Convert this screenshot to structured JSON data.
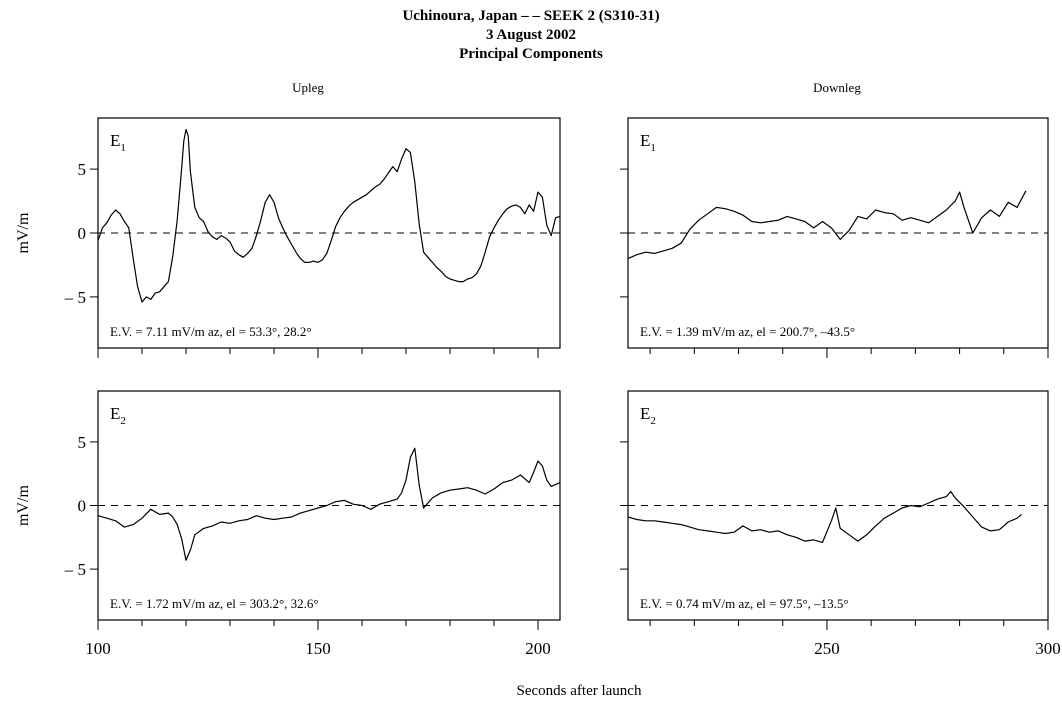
{
  "figure": {
    "title_lines": [
      "Uchinoura, Japan – – SEEK 2 (S310-31)",
      "3 August 2002",
      "Principal Components"
    ],
    "xlabel": "Seconds after launch",
    "ylabel": "mV/m",
    "left_column_title": "Upleg",
    "right_column_title": "Downleg"
  },
  "chart_data": [
    {
      "type": "line",
      "component": "E",
      "component_sub": "1",
      "column_title": "Upleg",
      "ylabel": "mV/m",
      "xlim": [
        100,
        205
      ],
      "ylim": [
        -9,
        9
      ],
      "yticks": [
        -5,
        0,
        5
      ],
      "ytick_labels": [
        "– 5",
        "0",
        "5"
      ],
      "xticks": [
        100,
        150,
        200
      ],
      "xtick_labels": [],
      "annotation": "E.V. = 7.11 mV/m   az, el = 53.3°, 28.2°",
      "x": [
        100,
        101,
        102,
        103,
        104,
        105,
        106,
        107,
        108,
        109,
        110,
        111,
        112,
        113,
        114,
        115,
        116,
        117,
        118,
        119,
        119.5,
        120,
        120.5,
        121,
        122,
        123,
        124,
        125,
        126,
        127,
        128,
        129,
        130,
        131,
        132,
        133,
        134,
        135,
        136,
        137,
        138,
        139,
        140,
        141,
        142,
        143,
        144,
        145,
        146,
        147,
        148,
        149,
        150,
        151,
        152,
        153,
        154,
        155,
        156,
        157,
        158,
        159,
        160,
        161,
        162,
        163,
        164,
        165,
        166,
        167,
        168,
        169,
        170,
        171,
        172,
        173,
        174,
        175,
        176,
        177,
        178,
        179,
        180,
        181,
        182,
        183,
        184,
        185,
        186,
        187,
        188,
        189,
        190,
        191,
        192,
        193,
        194,
        195,
        196,
        197,
        198,
        199,
        200,
        201,
        202,
        203,
        204,
        205
      ],
      "y": [
        -0.6,
        0.4,
        0.8,
        1.4,
        1.8,
        1.5,
        0.9,
        0.4,
        -2.0,
        -4.2,
        -5.4,
        -5.0,
        -5.2,
        -4.7,
        -4.6,
        -4.2,
        -3.8,
        -1.8,
        1.0,
        5.0,
        7.2,
        8.1,
        7.6,
        4.8,
        2.0,
        1.2,
        0.9,
        0.1,
        -0.3,
        -0.5,
        -0.2,
        -0.4,
        -0.7,
        -1.4,
        -1.7,
        -1.9,
        -1.6,
        -1.2,
        -0.2,
        1.0,
        2.4,
        3.0,
        2.4,
        1.2,
        0.4,
        -0.3,
        -0.9,
        -1.5,
        -2.0,
        -2.3,
        -2.3,
        -2.2,
        -2.3,
        -2.1,
        -1.6,
        -0.6,
        0.5,
        1.2,
        1.7,
        2.1,
        2.4,
        2.6,
        2.8,
        3.0,
        3.3,
        3.6,
        3.8,
        4.2,
        4.7,
        5.2,
        4.8,
        5.8,
        6.6,
        6.3,
        4.0,
        0.7,
        -1.5,
        -1.9,
        -2.3,
        -2.7,
        -3.0,
        -3.4,
        -3.6,
        -3.7,
        -3.8,
        -3.8,
        -3.6,
        -3.5,
        -3.2,
        -2.6,
        -1.5,
        -0.3,
        0.4,
        1.0,
        1.5,
        1.9,
        2.1,
        2.2,
        2.0,
        1.5,
        2.2,
        1.7,
        3.2,
        2.8,
        0.6,
        -0.2,
        1.2,
        1.3
      ]
    },
    {
      "type": "line",
      "component": "E",
      "component_sub": "1",
      "column_title": "Downleg",
      "xlim": [
        205,
        300
      ],
      "ylim": [
        -9,
        9
      ],
      "yticks": [
        -5,
        0,
        5
      ],
      "xticks": [
        250,
        300
      ],
      "xtick_labels": [],
      "annotation": "E.V. = 1.39 mV/m   az, el = 200.7°, –43.5°",
      "x": [
        205,
        207,
        209,
        211,
        213,
        215,
        217,
        219,
        221,
        223,
        225,
        227,
        229,
        231,
        233,
        235,
        237,
        239,
        241,
        243,
        245,
        247,
        249,
        251,
        253,
        255,
        257,
        259,
        261,
        263,
        265,
        267,
        269,
        271,
        273,
        275,
        277,
        279,
        280,
        281,
        283,
        285,
        287,
        289,
        291,
        293,
        295
      ],
      "y": [
        -2.0,
        -1.7,
        -1.5,
        -1.6,
        -1.4,
        -1.2,
        -0.8,
        0.3,
        1.0,
        1.5,
        2.0,
        1.9,
        1.7,
        1.4,
        0.9,
        0.8,
        0.9,
        1.0,
        1.3,
        1.1,
        0.9,
        0.4,
        0.9,
        0.4,
        -0.5,
        0.2,
        1.3,
        1.1,
        1.8,
        1.6,
        1.5,
        1.0,
        1.2,
        1.0,
        0.8,
        1.3,
        1.8,
        2.5,
        3.2,
        2.0,
        0.0,
        1.2,
        1.8,
        1.3,
        2.4,
        2.0,
        3.3
      ]
    },
    {
      "type": "line",
      "component": "E",
      "component_sub": "2",
      "column_title": "Upleg",
      "ylabel": "mV/m",
      "xlim": [
        100,
        205
      ],
      "ylim": [
        -9,
        9
      ],
      "yticks": [
        -5,
        0,
        5
      ],
      "ytick_labels": [
        "– 5",
        "0",
        "5"
      ],
      "xticks": [
        100,
        150,
        200
      ],
      "xtick_labels": [
        "100",
        "150",
        "200"
      ],
      "annotation": "E.V. = 1.72 mV/m   az, el = 303.2°, 32.6°",
      "x": [
        100,
        102,
        104,
        106,
        108,
        110,
        112,
        114,
        116,
        117,
        118,
        119,
        120,
        121,
        122,
        124,
        126,
        128,
        130,
        132,
        134,
        136,
        138,
        140,
        142,
        144,
        146,
        148,
        150,
        152,
        154,
        156,
        158,
        160,
        162,
        164,
        166,
        168,
        169,
        170,
        171,
        172,
        173,
        174,
        176,
        178,
        180,
        182,
        184,
        186,
        188,
        190,
        192,
        194,
        196,
        198,
        199,
        200,
        201,
        202,
        203,
        205
      ],
      "y": [
        -0.8,
        -1.0,
        -1.2,
        -1.7,
        -1.5,
        -1.0,
        -0.3,
        -0.7,
        -0.6,
        -0.9,
        -1.5,
        -2.6,
        -4.3,
        -3.5,
        -2.3,
        -1.8,
        -1.6,
        -1.3,
        -1.4,
        -1.2,
        -1.1,
        -0.8,
        -1.0,
        -1.1,
        -1.0,
        -0.9,
        -0.6,
        -0.4,
        -0.2,
        0.0,
        0.3,
        0.4,
        0.1,
        0.0,
        -0.3,
        0.1,
        0.3,
        0.5,
        1.0,
        2.0,
        3.8,
        4.5,
        1.6,
        -0.2,
        0.6,
        1.0,
        1.2,
        1.3,
        1.4,
        1.2,
        0.9,
        1.3,
        1.8,
        2.0,
        2.4,
        1.8,
        2.6,
        3.5,
        3.1,
        2.0,
        1.5,
        1.8
      ]
    },
    {
      "type": "line",
      "component": "E",
      "component_sub": "2",
      "column_title": "Downleg",
      "xlim": [
        205,
        300
      ],
      "ylim": [
        -9,
        9
      ],
      "yticks": [
        -5,
        0,
        5
      ],
      "xticks": [
        250,
        300
      ],
      "xtick_labels": [
        "250",
        "300"
      ],
      "annotation": "E.V. = 0.74 mV/m   az, el = 97.5°, –13.5°",
      "x": [
        205,
        207,
        209,
        211,
        213,
        215,
        217,
        219,
        221,
        223,
        225,
        227,
        229,
        231,
        233,
        235,
        237,
        239,
        241,
        243,
        245,
        247,
        249,
        251,
        252,
        253,
        255,
        257,
        259,
        261,
        263,
        265,
        267,
        269,
        271,
        273,
        275,
        277,
        278,
        279,
        281,
        283,
        285,
        287,
        289,
        291,
        293,
        294
      ],
      "y": [
        -0.9,
        -1.1,
        -1.2,
        -1.2,
        -1.3,
        -1.4,
        -1.5,
        -1.7,
        -1.9,
        -2.0,
        -2.1,
        -2.2,
        -2.1,
        -1.6,
        -2.0,
        -1.9,
        -2.1,
        -2.0,
        -2.3,
        -2.5,
        -2.8,
        -2.7,
        -2.9,
        -1.2,
        -0.2,
        -1.8,
        -2.3,
        -2.8,
        -2.3,
        -1.6,
        -1.0,
        -0.6,
        -0.2,
        0.0,
        -0.1,
        0.2,
        0.5,
        0.7,
        1.1,
        0.6,
        -0.1,
        -0.9,
        -1.7,
        -2.0,
        -1.9,
        -1.3,
        -1.0,
        -0.7
      ]
    }
  ]
}
